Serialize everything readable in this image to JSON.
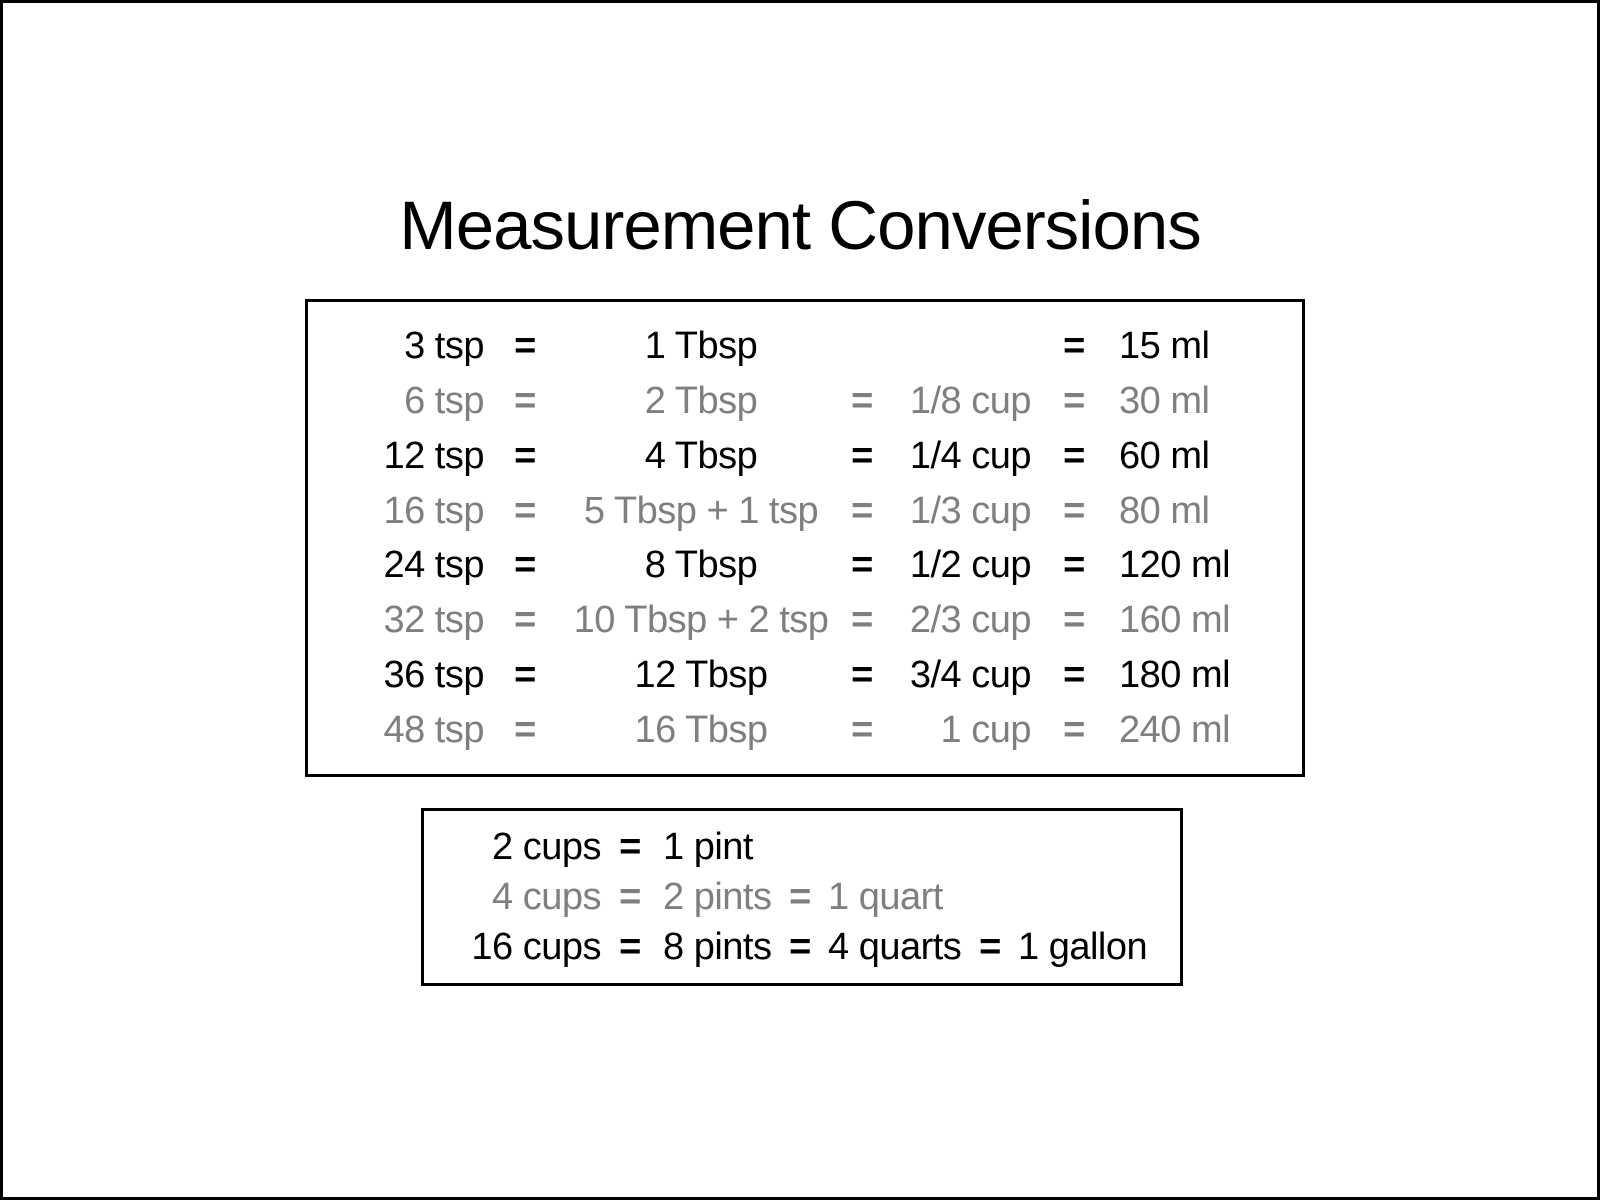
{
  "title": "Measurement Conversions",
  "colors": {
    "black": "#000000",
    "gray": "#7f7f7f"
  },
  "tsp_table": {
    "rows": [
      {
        "shade": "black",
        "tsp": "3 tsp",
        "eq1": "=",
        "tbsp": "1 Tbsp",
        "eq2": "",
        "cup": "",
        "eq3": "=",
        "ml": "15 ml"
      },
      {
        "shade": "gray",
        "tsp": "6 tsp",
        "eq1": "=",
        "tbsp": "2 Tbsp",
        "eq2": "=",
        "cup": "1/8 cup",
        "eq3": "=",
        "ml": "30 ml"
      },
      {
        "shade": "black",
        "tsp": "12 tsp",
        "eq1": "=",
        "tbsp": "4 Tbsp",
        "eq2": "=",
        "cup": "1/4 cup",
        "eq3": "=",
        "ml": "60 ml"
      },
      {
        "shade": "gray",
        "tsp": "16 tsp",
        "eq1": "=",
        "tbsp": "5 Tbsp + 1 tsp",
        "eq2": "=",
        "cup": "1/3 cup",
        "eq3": "=",
        "ml": "80 ml"
      },
      {
        "shade": "black",
        "tsp": "24 tsp",
        "eq1": "=",
        "tbsp": "8 Tbsp",
        "eq2": "=",
        "cup": "1/2 cup",
        "eq3": "=",
        "ml": "120 ml"
      },
      {
        "shade": "gray",
        "tsp": "32 tsp",
        "eq1": "=",
        "tbsp": "10 Tbsp + 2 tsp",
        "eq2": "=",
        "cup": "2/3 cup",
        "eq3": "=",
        "ml": "160 ml"
      },
      {
        "shade": "black",
        "tsp": "36 tsp",
        "eq1": "=",
        "tbsp": "12 Tbsp",
        "eq2": "=",
        "cup": "3/4 cup",
        "eq3": "=",
        "ml": "180 ml"
      },
      {
        "shade": "gray",
        "tsp": "48 tsp",
        "eq1": "=",
        "tbsp": "16 Tbsp",
        "eq2": "=",
        "cup": "1 cup",
        "eq3": "=",
        "ml": "240 ml"
      }
    ]
  },
  "cups_table": {
    "rows": [
      {
        "shade": "black",
        "cups": "2 cups",
        "eq1": "=",
        "pints": "1 pint",
        "eq2": "",
        "quarts": "",
        "eq3": "",
        "gallons": ""
      },
      {
        "shade": "gray",
        "cups": "4 cups",
        "eq1": "=",
        "pints": "2 pints",
        "eq2": "=",
        "quarts": "1 quart",
        "eq3": "",
        "gallons": ""
      },
      {
        "shade": "black",
        "cups": "16 cups",
        "eq1": "=",
        "pints": "8 pints",
        "eq2": "=",
        "quarts": "4 quarts",
        "eq3": "=",
        "gallons": "1 gallon"
      }
    ]
  }
}
